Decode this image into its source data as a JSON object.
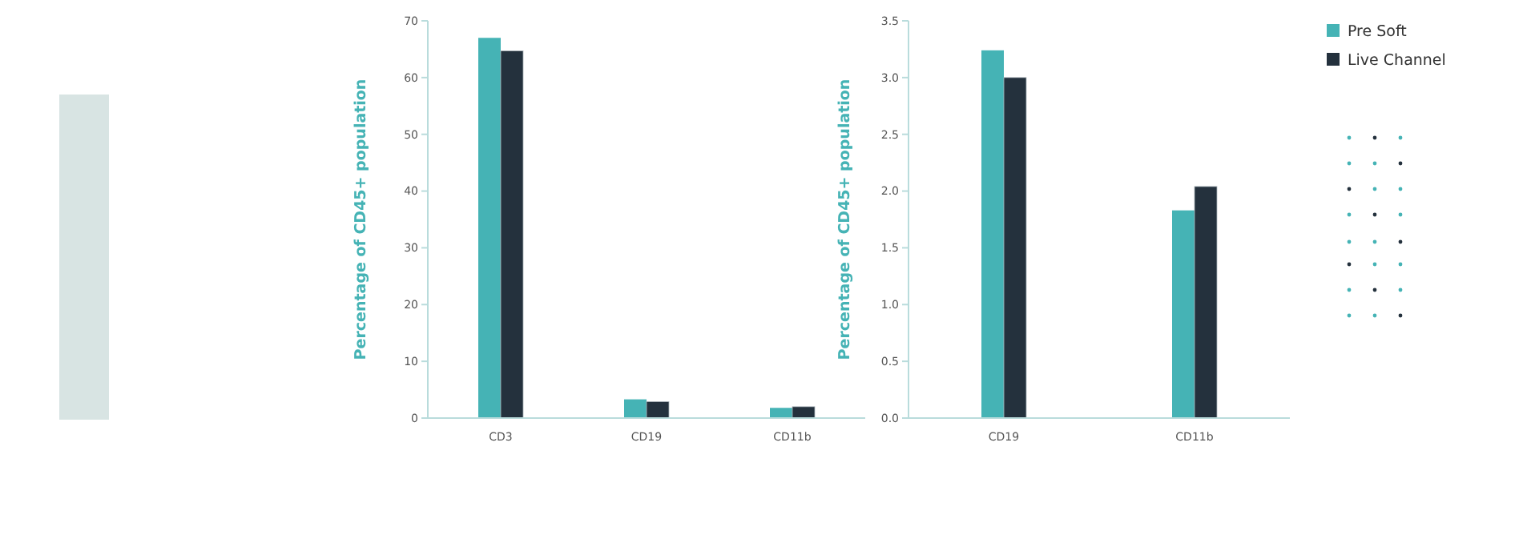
{
  "chart_data": [
    {
      "type": "bar",
      "ylabel": "Percentage of CD45+ population",
      "categories": [
        "CD3",
        "CD19",
        "CD11b"
      ],
      "series": [
        {
          "color": "#45b3b5",
          "values": [
            67,
            3.3,
            1.8
          ]
        },
        {
          "color": "#24313d",
          "values": [
            64.7,
            2.9,
            2.0
          ]
        }
      ],
      "ylim": [
        0,
        70
      ],
      "yticks": [
        0,
        10,
        20,
        30,
        40,
        50,
        60,
        70
      ],
      "legend": false
    },
    {
      "type": "bar",
      "ylabel": "Percentage of CD45+ population",
      "categories": [
        "CD19",
        "CD11b"
      ],
      "series": [
        {
          "name": "Pre Soft",
          "color": "#45b3b5",
          "values": [
            3.24,
            1.83
          ]
        },
        {
          "name": "Live Channel",
          "color": "#24313d",
          "values": [
            3.0,
            2.04
          ]
        }
      ],
      "ylim": [
        0,
        3.5
      ],
      "yticks": [
        {
          "value": 0,
          "label": "0.0"
        },
        {
          "value": 0.5,
          "label": "0.5"
        },
        {
          "value": 1,
          "label": "1.0"
        },
        {
          "value": 1.5,
          "label": "1.5"
        },
        {
          "value": 2,
          "label": "2.0"
        },
        {
          "value": 2.5,
          "label": "2.5"
        },
        {
          "value": 3,
          "label": "3.0"
        },
        {
          "value": 3.5,
          "label": "3.5"
        }
      ],
      "legend": "top right"
    }
  ]
}
